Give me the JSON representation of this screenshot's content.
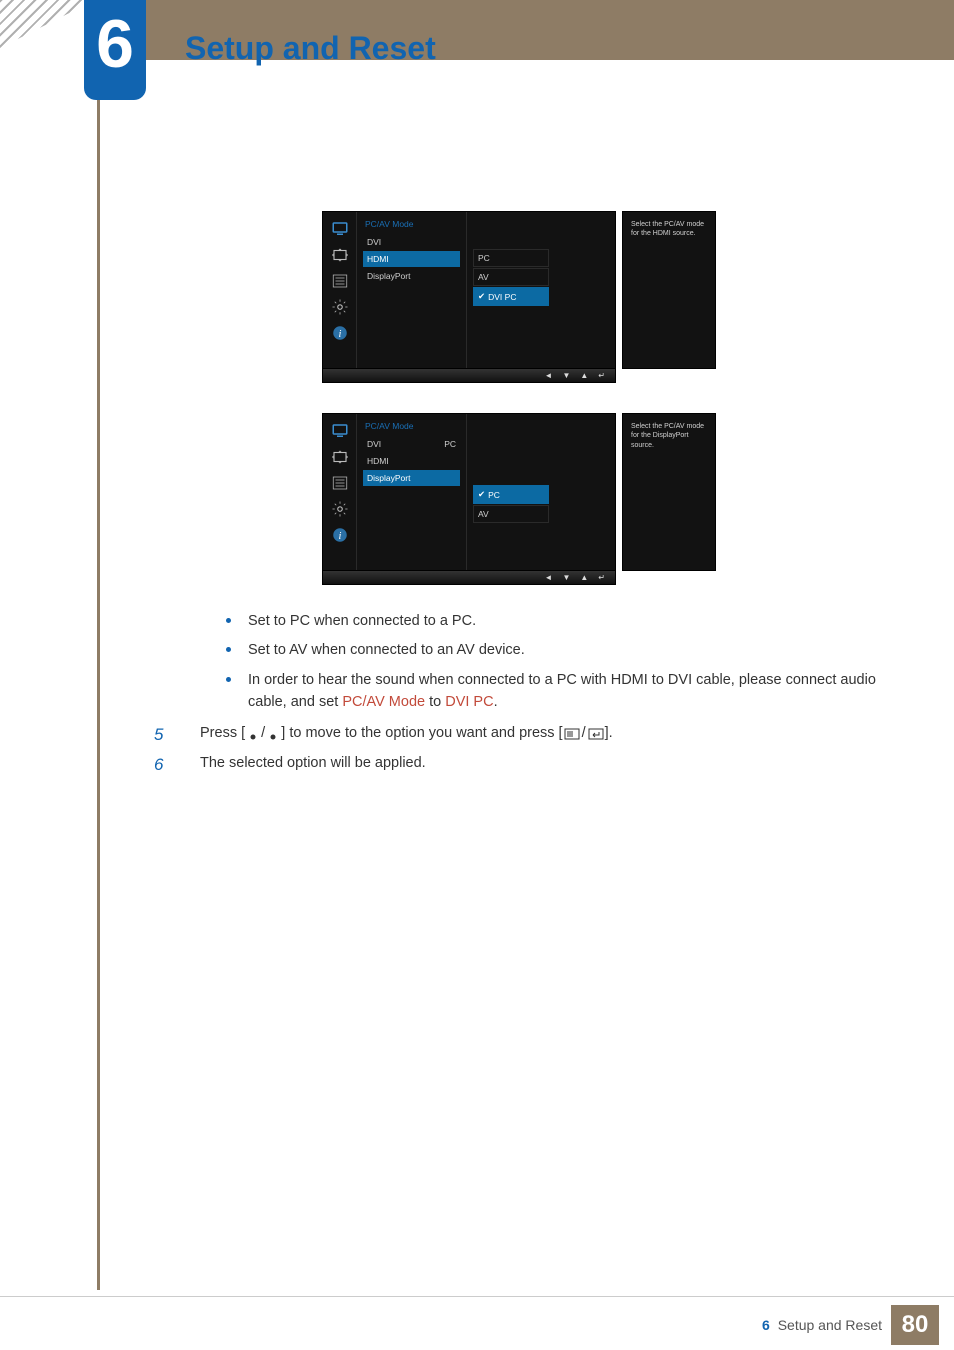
{
  "chapter": {
    "number": "6",
    "title": "Setup and Reset"
  },
  "osd1": {
    "title": "PC/AV Mode",
    "items": [
      {
        "label": "DVI"
      },
      {
        "label": "HDMI",
        "selected": true
      },
      {
        "label": "DisplayPort"
      }
    ],
    "sub": [
      {
        "label": "PC"
      },
      {
        "label": "AV"
      },
      {
        "label": "DVI PC",
        "selected": true,
        "checked": true
      }
    ],
    "sub_offset_index": 0,
    "help": "Select the PC/AV mode for the HDMI source."
  },
  "osd2": {
    "title": "PC/AV Mode",
    "items": [
      {
        "label": "DVI",
        "value": "PC"
      },
      {
        "label": "HDMI"
      },
      {
        "label": "DisplayPort",
        "selected": true
      }
    ],
    "sub": [
      {
        "label": "PC",
        "selected": true,
        "checked": true
      },
      {
        "label": "AV"
      }
    ],
    "sub_offset_index": 2,
    "help": "Select the PC/AV mode for the DisplayPort source."
  },
  "osd_nav": {
    "left": "◄",
    "down": "▼",
    "up": "▲",
    "enter": "↵"
  },
  "bullets": [
    "Set to PC when connected to a PC.",
    "Set to AV when connected to an AV device.",
    "In order to hear the sound when connected to a PC with HDMI to DVI cable, please connect audio cable, and set "
  ],
  "bullet3_suffix": {
    "mode": "PC/AV Mode",
    "to": " to ",
    "val": "DVI PC",
    "dot": "."
  },
  "step5": {
    "num": "5",
    "pre": "Press [ ",
    "mid1": " / ",
    "mid2": " ] to move to the option you want and press [",
    "post": "]."
  },
  "step6": {
    "num": "6",
    "text": "The selected option will be applied."
  },
  "footer": {
    "chapter_num": "6",
    "chapter_title": "Setup and Reset",
    "page": "80"
  },
  "colors": {
    "brand_blue": "#1164b0",
    "band_brown": "#8e7c65",
    "accent_red": "#c24a3a",
    "osd_bg": "#121212",
    "osd_sel": "#0c6aa3"
  }
}
